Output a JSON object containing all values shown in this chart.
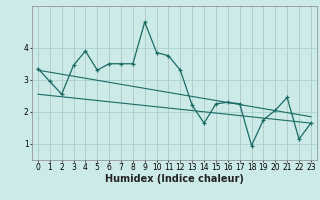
{
  "xlabel": "Humidex (Indice chaleur)",
  "background_color": "#cceae8",
  "grid_color": "#aad4d0",
  "line_color": "#1a6b65",
  "xlim": [
    -0.5,
    23.5
  ],
  "ylim": [
    0.5,
    5.3
  ],
  "yticks": [
    1,
    2,
    3,
    4
  ],
  "xticks": [
    0,
    1,
    2,
    3,
    4,
    5,
    6,
    7,
    8,
    9,
    10,
    11,
    12,
    13,
    14,
    15,
    16,
    17,
    18,
    19,
    20,
    21,
    22,
    23
  ],
  "series1_x": [
    0,
    1,
    2,
    3,
    4,
    5,
    6,
    7,
    8,
    9,
    10,
    11,
    12,
    13,
    14,
    15,
    16,
    17,
    18,
    19,
    20,
    21,
    22,
    23
  ],
  "series1_y": [
    3.35,
    2.95,
    2.55,
    3.45,
    3.9,
    3.3,
    3.5,
    3.5,
    3.5,
    4.8,
    3.85,
    3.75,
    3.3,
    2.2,
    1.65,
    2.25,
    2.3,
    2.25,
    0.95,
    1.75,
    2.05,
    2.45,
    1.15,
    1.65
  ],
  "trend1_x": [
    0,
    23
  ],
  "trend1_y": [
    3.3,
    1.85
  ],
  "trend2_x": [
    0,
    23
  ],
  "trend2_y": [
    2.55,
    1.65
  ],
  "font_size_label": 7,
  "font_size_tick": 5.5
}
